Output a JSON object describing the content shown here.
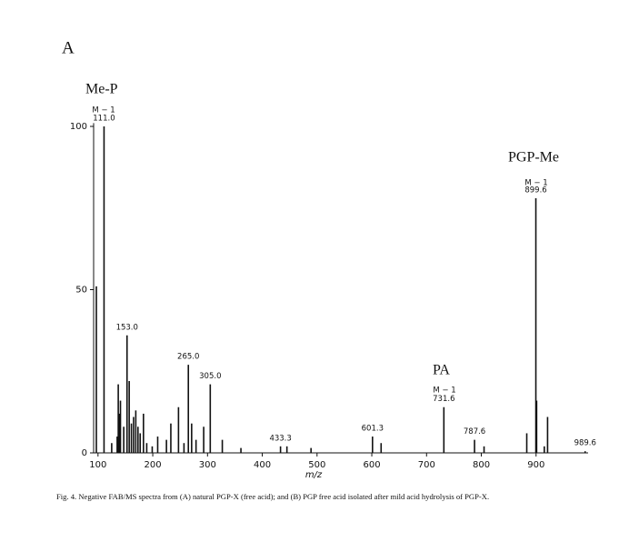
{
  "chart_data": {
    "type": "bar",
    "panel_label": "A",
    "annotations": [
      "Me-P",
      "PA",
      "PGP-Me",
      "M − 1",
      "M − 1",
      "M − 1"
    ],
    "x_label": "m/z",
    "caption": "Fig. 4. Negative FAB/MS spectra from (A) natural PGP-X (free acid); and (B) PGP free acid isolated after mild acid hydrolysis of PGP-X.",
    "color": "#111111",
    "x": [
      97,
      111,
      125,
      135,
      137,
      139,
      141,
      147,
      153,
      157,
      161,
      165,
      169,
      173,
      177,
      183,
      189,
      199,
      209,
      225,
      233,
      247,
      257,
      265,
      271,
      279,
      293,
      305,
      327,
      361,
      433.3,
      445,
      489,
      601.3,
      617,
      731.6,
      787.6,
      805,
      883,
      899.6,
      901,
      915,
      921,
      989.6
    ],
    "values": [
      51,
      100,
      3,
      5,
      21,
      12,
      16,
      8,
      36,
      22,
      9,
      11,
      13,
      8,
      6,
      12,
      3,
      2,
      5,
      4,
      9,
      14,
      3,
      27,
      9,
      4,
      8,
      21,
      4,
      1.5,
      2,
      2,
      1.5,
      5,
      3,
      14,
      4,
      2,
      6,
      78,
      16,
      2,
      11,
      0.5
    ],
    "peak_labels": [
      {
        "x": 111,
        "label": "111.0"
      },
      {
        "x": 153,
        "label": "153.0"
      },
      {
        "x": 265,
        "label": "265.0"
      },
      {
        "x": 305,
        "label": "305.0"
      },
      {
        "x": 433.3,
        "label": "433.3"
      },
      {
        "x": 601.3,
        "label": "601.3"
      },
      {
        "x": 731.6,
        "label": "731.6"
      },
      {
        "x": 787.6,
        "label": "787.6"
      },
      {
        "x": 899.6,
        "label": "899.6"
      },
      {
        "x": 989.6,
        "label": "989.6"
      }
    ],
    "xlim": [
      92,
      995
    ],
    "xticks": [
      100,
      200,
      300,
      400,
      500,
      600,
      700,
      800,
      900
    ],
    "ylim": [
      0,
      101
    ],
    "yticks": [
      0,
      50,
      100
    ]
  }
}
